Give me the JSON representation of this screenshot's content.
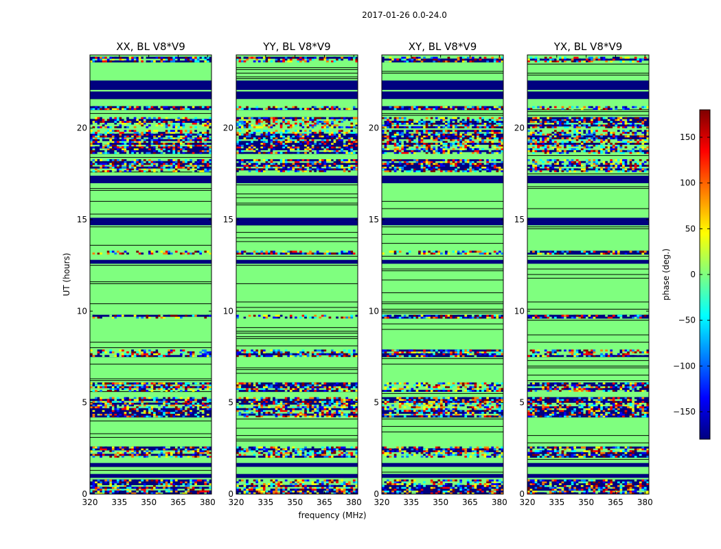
{
  "chart_data": {
    "type": "heatmap",
    "title": "2017-01-26 0.0-24.0",
    "xlabel": "frequency (MHz)",
    "ylabel": "UT (hours)",
    "xlim": [
      320,
      382
    ],
    "ylim": [
      0,
      24
    ],
    "xticks": [
      320,
      335,
      350,
      365,
      380
    ],
    "yticks": [
      0,
      5,
      10,
      15,
      20
    ],
    "panels": [
      {
        "title": "XX, BL V8*V9"
      },
      {
        "title": "YY, BL V8*V9"
      },
      {
        "title": "XY, BL V8*V9"
      },
      {
        "title": "YX, BL V8*V9"
      }
    ],
    "colorbar": {
      "label": "phase (deg.)",
      "range": [
        -180,
        180
      ],
      "ticks": [
        -150,
        -100,
        -50,
        0,
        50,
        100,
        150
      ],
      "colormap": [
        "#00007f",
        "#0000ff",
        "#007fff",
        "#00ffff",
        "#7fff7f",
        "#ffff00",
        "#ff7f00",
        "#ff0000",
        "#7f0000"
      ]
    },
    "row_classes": {
      "flagged_color": "#00007f",
      "uniform_color": "#7fff7f",
      "separator_color": "#000000",
      "flagged_spans_hours": [
        [
          22.1,
          22.6
        ],
        [
          21.6,
          22.0
        ],
        [
          17.0,
          17.4
        ],
        [
          14.7,
          15.1
        ],
        [
          12.6,
          12.8
        ],
        [
          1.5,
          1.7
        ],
        [
          0.9,
          1.1
        ]
      ],
      "noisy_spans_hours": [
        [
          23.6,
          23.9
        ],
        [
          21.0,
          21.2
        ],
        [
          20.0,
          20.6
        ],
        [
          18.6,
          19.9
        ],
        [
          17.6,
          18.3
        ],
        [
          13.1,
          13.3
        ],
        [
          9.6,
          9.8
        ],
        [
          7.5,
          7.9
        ],
        [
          5.6,
          6.1
        ],
        [
          4.2,
          5.3
        ],
        [
          2.0,
          2.6
        ],
        [
          0.0,
          0.8
        ]
      ]
    }
  }
}
